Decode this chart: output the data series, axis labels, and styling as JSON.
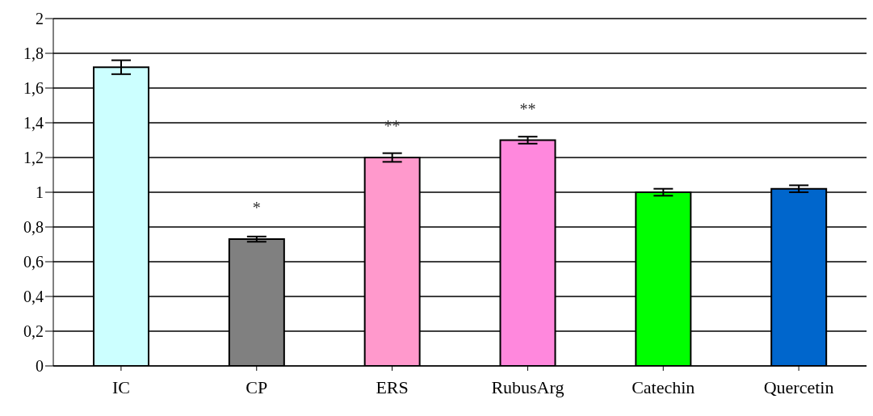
{
  "chart_data": {
    "type": "bar",
    "categories": [
      "IC",
      "CP",
      "ERS",
      "RubusArg",
      "Catechin",
      "Quercetin"
    ],
    "values": [
      1.72,
      0.73,
      1.2,
      1.3,
      1.0,
      1.02
    ],
    "errors": [
      0.04,
      0.015,
      0.025,
      0.02,
      0.02,
      0.02
    ],
    "colors": [
      "#ccffff",
      "#808080",
      "#ff99cc",
      "#ff88dd",
      "#00ff00",
      "#0066cc"
    ],
    "ylim": [
      0,
      2
    ],
    "yticks": [
      0,
      {
        "value": 0.2,
        "label": "0,2"
      },
      {
        "value": 0.4,
        "label": "0,4"
      },
      {
        "value": 0.6,
        "label": "0,6"
      },
      {
        "value": 0.8,
        "label": "0,8"
      },
      1,
      {
        "value": 1.2,
        "label": "1,2"
      },
      {
        "value": 1.4,
        "label": "1,4"
      },
      {
        "value": 1.6,
        "label": "1,6"
      },
      {
        "value": 1.8,
        "label": "1,8"
      },
      2
    ],
    "grid": "y",
    "annotations": [
      {
        "text": "*",
        "x": "CP",
        "y": 0.73
      },
      {
        "text": "**",
        "x": "ERS",
        "y": 1.2
      },
      {
        "text": "**",
        "x": "RubusArg",
        "y": 1.3
      }
    ]
  }
}
